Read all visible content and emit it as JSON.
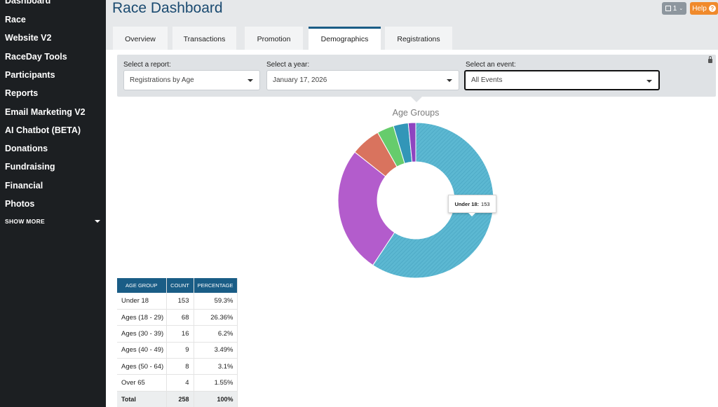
{
  "sidebar": {
    "items": [
      {
        "label": "Dashboard"
      },
      {
        "label": "Race"
      },
      {
        "label": "Website V2"
      },
      {
        "label": "RaceDay Tools"
      },
      {
        "label": "Participants"
      },
      {
        "label": "Reports"
      },
      {
        "label": "Email Marketing V2"
      },
      {
        "label": "AI Chatbot (BETA)"
      },
      {
        "label": "Donations"
      },
      {
        "label": "Fundraising"
      },
      {
        "label": "Financial"
      },
      {
        "label": "Photos"
      }
    ],
    "show_more": "SHOW MORE"
  },
  "header": {
    "title": "Race Dashboard",
    "ticket_count": "1",
    "help_label": "Help",
    "help_icon": "?"
  },
  "tabs": [
    {
      "label": "Overview",
      "active": false
    },
    {
      "label": "Transactions",
      "active": false
    },
    {
      "label": "Promotion",
      "active": false
    },
    {
      "label": "Demographics",
      "active": true
    },
    {
      "label": "Registrations",
      "active": false
    }
  ],
  "filters": {
    "report": {
      "label": "Select a report:",
      "value": "Registrations by Age"
    },
    "year": {
      "label": "Select a year:",
      "value": "January 17, 2026"
    },
    "event": {
      "label": "Select an event:",
      "value": "All Events"
    }
  },
  "tooltip": {
    "label": "Under 18:",
    "value": "153"
  },
  "table": {
    "headers": [
      "AGE GROUP",
      "COUNT",
      "PERCENTAGE"
    ],
    "rows": [
      {
        "group": "Under 18",
        "count": "153",
        "pct": "59.3%"
      },
      {
        "group": "Ages (18 - 29)",
        "count": "68",
        "pct": "26.36%"
      },
      {
        "group": "Ages (30 - 39)",
        "count": "16",
        "pct": "6.2%"
      },
      {
        "group": "Ages (40 - 49)",
        "count": "9",
        "pct": "3.49%"
      },
      {
        "group": "Ages (50 - 64)",
        "count": "8",
        "pct": "3.1%"
      },
      {
        "group": "Over 65",
        "count": "4",
        "pct": "1.55%"
      }
    ],
    "total": {
      "group": "Total",
      "count": "258",
      "pct": "100%"
    }
  },
  "chart_data": {
    "type": "pie",
    "title": "Age Groups",
    "categories": [
      "Under 18",
      "Ages (18 - 29)",
      "Ages (30 - 39)",
      "Ages (40 - 49)",
      "Ages (50 - 64)",
      "Over 65"
    ],
    "values": [
      153,
      68,
      16,
      9,
      8,
      4
    ],
    "colors": [
      "#5cb8d2",
      "#b35ccc",
      "#d9735e",
      "#66cc6c",
      "#3296b8",
      "#8e44c0"
    ],
    "donut": true,
    "highlighted": "Under 18"
  }
}
